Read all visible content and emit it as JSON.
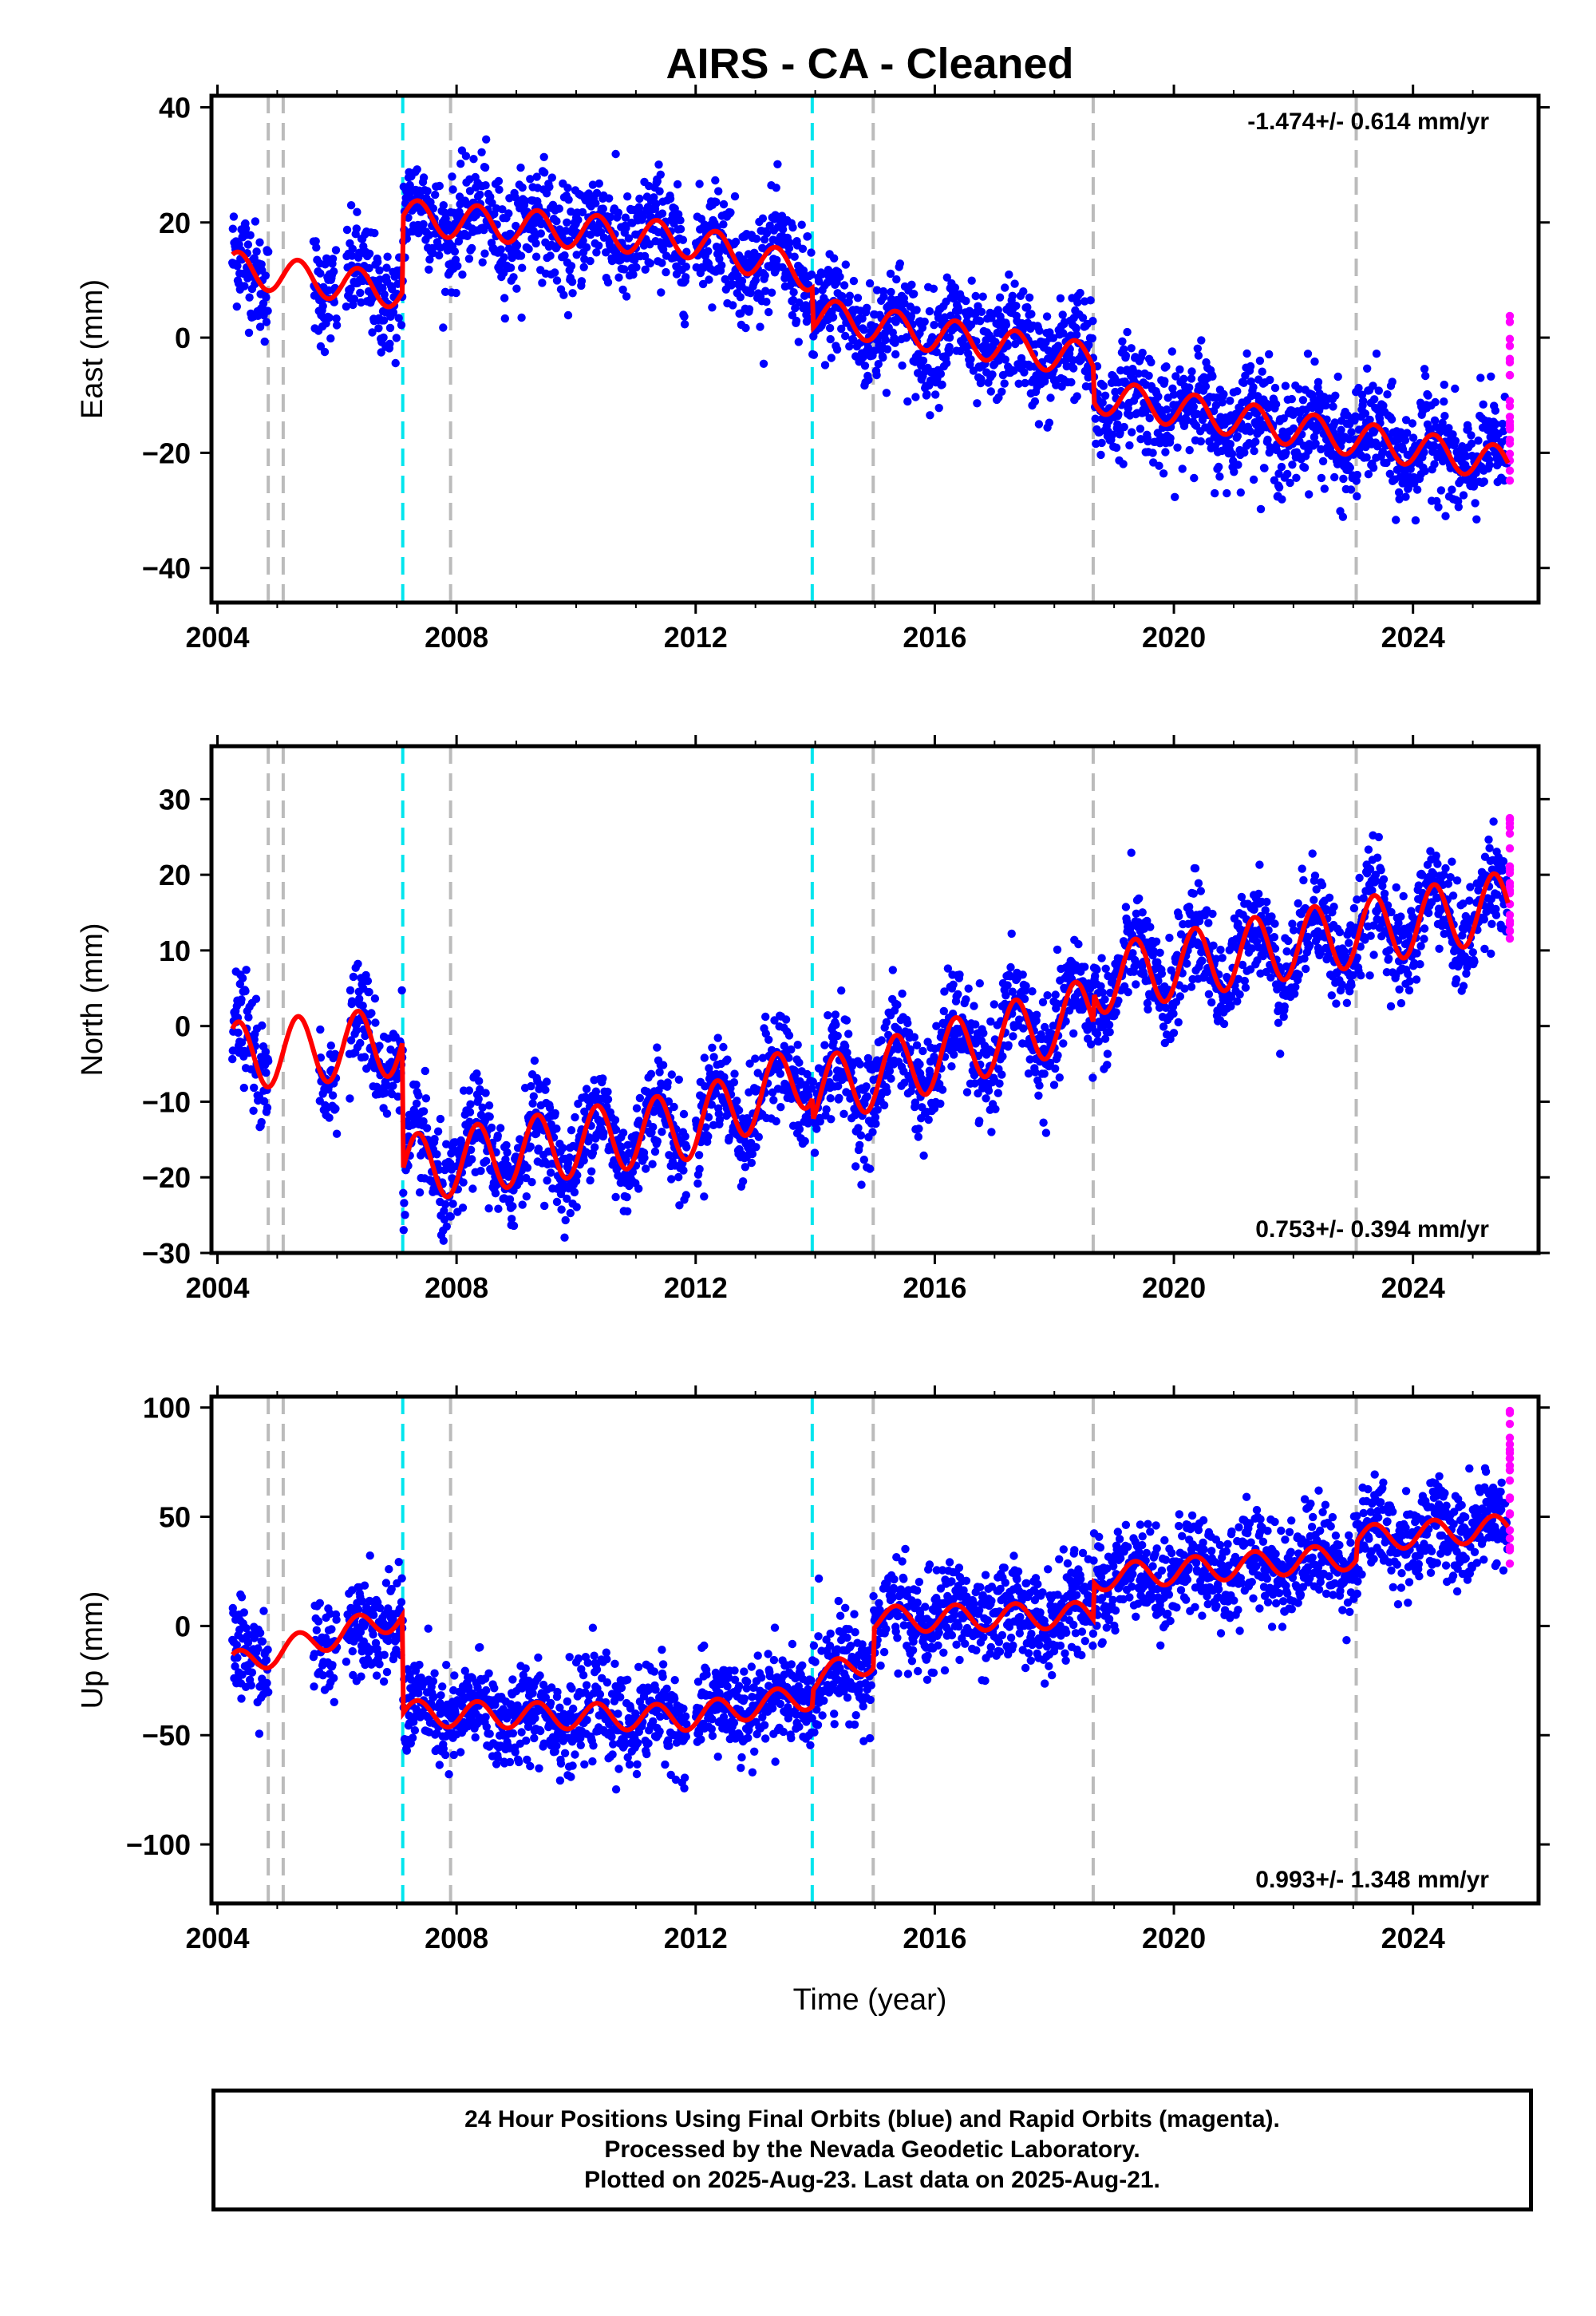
{
  "title": "AIRS  - CA - Cleaned",
  "xlabel": "Time (year)",
  "colors": {
    "final_orbits": "#0000ff",
    "rapid_orbits": "#ff00ff",
    "model": "#ff0000",
    "equipment_change": "#bbbbbb",
    "earthquake": "#00e5ee"
  },
  "footer": {
    "line1": "24 Hour Positions Using Final Orbits (blue) and Rapid Orbits (magenta).",
    "line2": "Processed by the Nevada Geodetic Laboratory.",
    "line3": "Plotted on 2025-Aug-23. Last data on 2025-Aug-21."
  },
  "chart_data": [
    {
      "type": "scatter",
      "ylabel": "East (mm)",
      "rate_label": "-1.474+/- 0.614 mm/yr",
      "legend_position": "top-right",
      "xlim": [
        2003.9,
        2026.1
      ],
      "ylim": [
        -46,
        42
      ],
      "xticks": [
        "2004",
        "2008",
        "2012",
        "2016",
        "2020",
        "2024"
      ],
      "yticks": [
        "40",
        "20",
        "0",
        "−20",
        "−40"
      ],
      "yticks_values": [
        40,
        20,
        0,
        -20,
        -40
      ],
      "gray_lines": [
        2004.85,
        2005.1,
        2007.9,
        2014.97,
        2018.65,
        2023.05
      ],
      "cyan_lines": [
        2007.1,
        2013.95
      ],
      "trend_knots": [
        [
          2004.25,
          12
        ],
        [
          2007.1,
          8
        ],
        [
          2007.1,
          21
        ],
        [
          2011.8,
          17
        ],
        [
          2013.95,
          11
        ],
        [
          2013.95,
          4
        ],
        [
          2018.65,
          -4
        ],
        [
          2018.65,
          -10
        ],
        [
          2025.6,
          -22
        ]
      ],
      "offsets_after": [
        [
          2007.1,
          13
        ],
        [
          2013.95,
          -7
        ],
        [
          2018.65,
          -6
        ]
      ],
      "seasonal_amp": 3,
      "data_gaps": [
        [
          2004.85,
          2005.6
        ],
        [
          2006.0,
          2006.15
        ],
        [
          2011.85,
          2012.0
        ]
      ],
      "noise_sd": 4.6,
      "rapid_range": [
        -27,
        6
      ]
    },
    {
      "type": "scatter",
      "ylabel": "North (mm)",
      "rate_label": "0.753+/- 0.394 mm/yr",
      "legend_position": "bottom-right",
      "xlim": [
        2003.9,
        2026.1
      ],
      "ylim": [
        -30,
        37
      ],
      "xticks": [
        "2004",
        "2008",
        "2012",
        "2016",
        "2020",
        "2024"
      ],
      "yticks": [
        "30",
        "20",
        "10",
        "0",
        "−10",
        "−20",
        "−30"
      ],
      "yticks_values": [
        30,
        20,
        10,
        0,
        -10,
        -20,
        -30
      ],
      "gray_lines": [
        2004.85,
        2005.1,
        2007.9,
        2014.97,
        2018.65,
        2023.05
      ],
      "cyan_lines": [
        2007.1,
        2013.95
      ],
      "trend_knots": [
        [
          2004.25,
          -4
        ],
        [
          2007.1,
          -2
        ],
        [
          2007.1,
          -19
        ],
        [
          2012.0,
          -13
        ],
        [
          2013.95,
          -6
        ],
        [
          2013.95,
          -9
        ],
        [
          2018.65,
          2
        ],
        [
          2018.65,
          6
        ],
        [
          2025.6,
          16
        ]
      ],
      "offsets_after": [
        [
          2007.1,
          -17
        ],
        [
          2013.95,
          -3
        ],
        [
          2018.65,
          4
        ]
      ],
      "seasonal_amp": 4.5,
      "data_gaps": [
        [
          2004.85,
          2005.7
        ],
        [
          2006.0,
          2006.2
        ],
        [
          2011.85,
          2012.0
        ]
      ],
      "noise_sd": 3.3,
      "rapid_range": [
        10,
        28
      ]
    },
    {
      "type": "scatter",
      "ylabel": "Up (mm)",
      "rate_label": "0.993+/- 1.348 mm/yr",
      "legend_position": "bottom-right",
      "xlim": [
        2003.9,
        2026.1
      ],
      "ylim": [
        -127,
        105
      ],
      "xticks": [
        "2004",
        "2008",
        "2012",
        "2016",
        "2020",
        "2024"
      ],
      "yticks": [
        "100",
        "50",
        "0",
        "−50",
        "−100"
      ],
      "yticks_values": [
        100,
        50,
        0,
        -50,
        -100
      ],
      "gray_lines": [
        2004.85,
        2005.1,
        2007.9,
        2014.97,
        2018.65,
        2023.05
      ],
      "cyan_lines": [
        2007.1,
        2013.95
      ],
      "trend_knots": [
        [
          2004.25,
          -18
        ],
        [
          2007.1,
          5
        ],
        [
          2007.1,
          -40
        ],
        [
          2011.8,
          -42
        ],
        [
          2013.95,
          -32
        ],
        [
          2013.95,
          -25
        ],
        [
          2014.97,
          -15
        ],
        [
          2014.97,
          3
        ],
        [
          2018.65,
          5
        ],
        [
          2018.65,
          22
        ],
        [
          2023.05,
          32
        ],
        [
          2023.05,
          40
        ],
        [
          2025.6,
          45
        ]
      ],
      "offsets_after": [
        [
          2007.1,
          -45
        ],
        [
          2013.95,
          7
        ],
        [
          2014.97,
          18
        ],
        [
          2018.65,
          17
        ],
        [
          2023.05,
          8
        ]
      ],
      "seasonal_amp": 6,
      "data_gaps": [
        [
          2004.85,
          2005.6
        ],
        [
          2006.0,
          2006.15
        ],
        [
          2011.85,
          2012.0
        ]
      ],
      "noise_sd": 11,
      "rapid_range": [
        22,
        100
      ]
    }
  ]
}
